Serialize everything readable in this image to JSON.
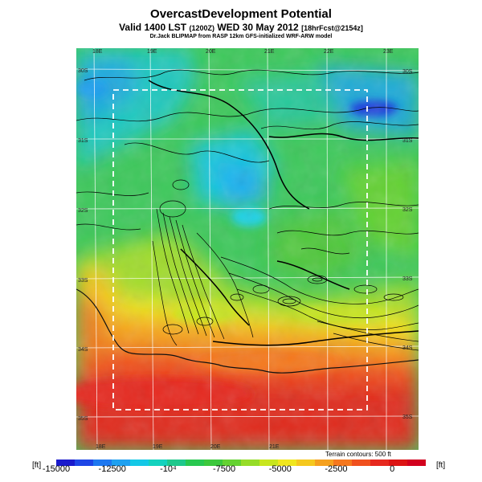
{
  "title": "OvercastDevelopment Potential",
  "subtitle": {
    "prefix": "Valid 1400 LST",
    "zulu": "(1200Z)",
    "date": "WED 30 May 2012",
    "fcst": "[18hrFcst@2154z]"
  },
  "credit": "Dr.Jack BLIPMAP from RASP 12km GFS-initialized WRF-ARW model",
  "terrain_note": "Terrain contours: 500 ft",
  "units_left": "[ft]",
  "units_right": "[ft]",
  "colorbar": {
    "min": -15000,
    "max": 1500,
    "ticks": [
      {
        "value": -15000,
        "label": "-15000"
      },
      {
        "value": -12500,
        "label": "-12500"
      },
      {
        "value": -10000,
        "label": "-10⁴"
      },
      {
        "value": -7500,
        "label": "-7500"
      },
      {
        "value": -5000,
        "label": "-5000"
      },
      {
        "value": -2500,
        "label": "-2500"
      },
      {
        "value": 0,
        "label": "0"
      }
    ],
    "colors": [
      "#1a1acc",
      "#1e46e6",
      "#1e78f0",
      "#1ea0f0",
      "#14c8e6",
      "#14d2be",
      "#1ec88c",
      "#28c850",
      "#3cc83c",
      "#64d232",
      "#96dc28",
      "#c8e61e",
      "#f0e61e",
      "#f5c81e",
      "#f5a01e",
      "#f5781e",
      "#f0501e",
      "#e6281e",
      "#dc1414",
      "#d2001e"
    ]
  },
  "grid_labels": {
    "top": [
      "18E",
      "19E",
      "20E",
      "21E",
      "22E",
      "23E"
    ],
    "bottom": [
      "18E",
      "19E",
      "20E",
      "21E"
    ],
    "left": [
      "30S",
      "31S",
      "32S",
      "33S",
      "34S",
      "35S"
    ],
    "right": [
      "30S",
      "31S",
      "32S",
      "33S",
      "34S",
      "35S"
    ]
  },
  "colors": {
    "background": "#ffffff",
    "ocean_high": "#e02a1e",
    "land_mid": "#46c84a",
    "dashed_box": "#ffffff"
  }
}
